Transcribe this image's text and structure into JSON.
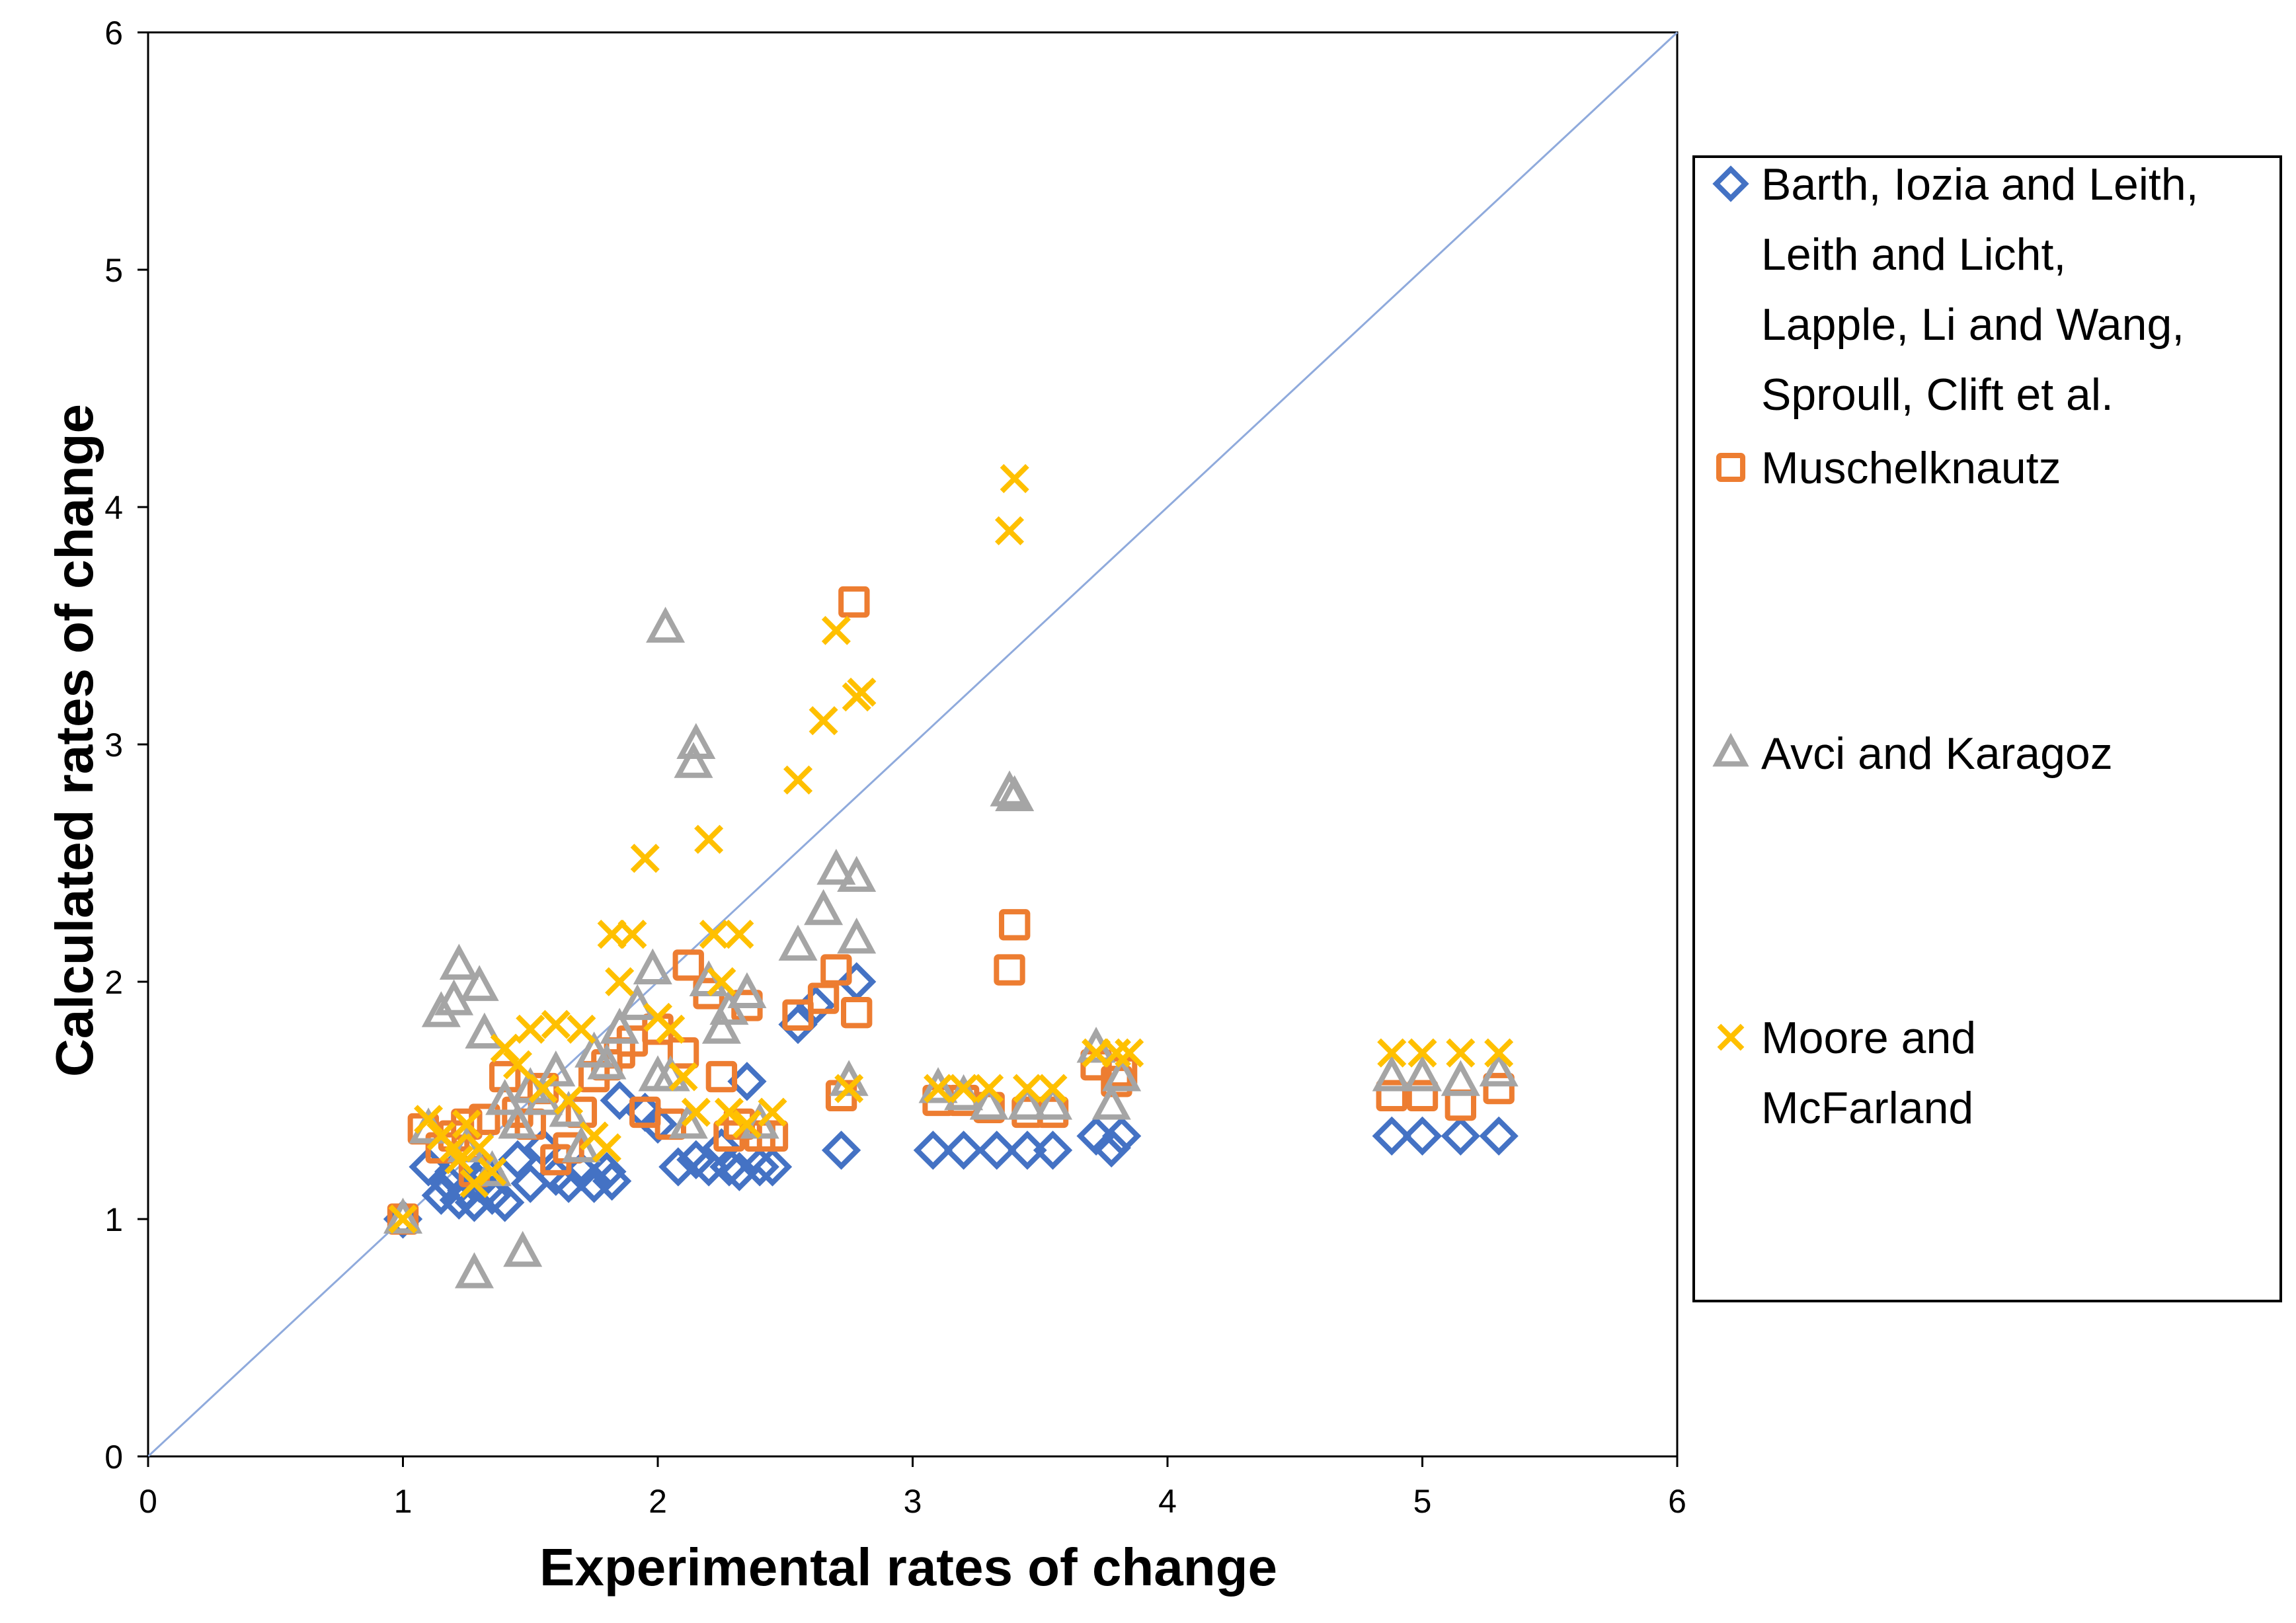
{
  "chart_data": {
    "type": "scatter",
    "title": "",
    "xlabel": "Experimental rates of change",
    "ylabel": "Calculated rates of change",
    "xlim": [
      0,
      6
    ],
    "ylim": [
      0,
      6
    ],
    "xticks": [
      "0",
      "1",
      "2",
      "3",
      "4",
      "5",
      "6"
    ],
    "yticks": [
      "0",
      "1",
      "2",
      "3",
      "4",
      "5",
      "6"
    ],
    "grid": false,
    "legend_position": "right",
    "reference_line": {
      "name": "y = x",
      "from": [
        0,
        0
      ],
      "to": [
        6,
        6
      ],
      "color": "#8faadc"
    },
    "series": [
      {
        "name": "Barth, Iozia and Leith, Leith and Licht, Lapple, Li and Wang, Sproull, Clift et al.",
        "legend_lines": [
          "Barth, Iozia and Leith,",
          "Leith and Licht,",
          "Lapple, Li and Wang,",
          "Sproull, Clift et al."
        ],
        "marker": "diamond",
        "color": "#4472c4",
        "points": [
          [
            1.0,
            1.0
          ],
          [
            1.1,
            1.22
          ],
          [
            1.15,
            1.1
          ],
          [
            1.18,
            1.15
          ],
          [
            1.2,
            1.2
          ],
          [
            1.22,
            1.08
          ],
          [
            1.25,
            1.12
          ],
          [
            1.28,
            1.07
          ],
          [
            1.3,
            1.15
          ],
          [
            1.32,
            1.2
          ],
          [
            1.35,
            1.1
          ],
          [
            1.4,
            1.07
          ],
          [
            1.45,
            1.25
          ],
          [
            1.5,
            1.15
          ],
          [
            1.55,
            1.3
          ],
          [
            1.6,
            1.18
          ],
          [
            1.65,
            1.15
          ],
          [
            1.7,
            1.2
          ],
          [
            1.75,
            1.15
          ],
          [
            1.8,
            1.2
          ],
          [
            1.82,
            1.16
          ],
          [
            1.85,
            1.5
          ],
          [
            1.95,
            1.45
          ],
          [
            2.0,
            1.4
          ],
          [
            2.08,
            1.22
          ],
          [
            2.15,
            1.25
          ],
          [
            2.2,
            1.22
          ],
          [
            2.25,
            1.3
          ],
          [
            2.28,
            1.22
          ],
          [
            2.32,
            1.2
          ],
          [
            2.35,
            1.58
          ],
          [
            2.4,
            1.22
          ],
          [
            2.45,
            1.22
          ],
          [
            2.55,
            1.82
          ],
          [
            2.62,
            1.9
          ],
          [
            2.72,
            1.29
          ],
          [
            2.78,
            2.0
          ],
          [
            3.08,
            1.29
          ],
          [
            3.2,
            1.29
          ],
          [
            3.33,
            1.29
          ],
          [
            3.45,
            1.29
          ],
          [
            3.55,
            1.29
          ],
          [
            3.72,
            1.35
          ],
          [
            3.78,
            1.3
          ],
          [
            3.82,
            1.35
          ],
          [
            4.88,
            1.35
          ],
          [
            5.0,
            1.35
          ],
          [
            5.15,
            1.35
          ],
          [
            5.3,
            1.35
          ]
        ]
      },
      {
        "name": "Muschelknautz",
        "legend_lines": [
          "Muschelknautz"
        ],
        "marker": "square",
        "color": "#ed7d31",
        "points": [
          [
            1.0,
            1.0
          ],
          [
            1.08,
            1.38
          ],
          [
            1.15,
            1.3
          ],
          [
            1.2,
            1.35
          ],
          [
            1.25,
            1.4
          ],
          [
            1.28,
            1.2
          ],
          [
            1.32,
            1.42
          ],
          [
            1.4,
            1.6
          ],
          [
            1.45,
            1.45
          ],
          [
            1.5,
            1.4
          ],
          [
            1.55,
            1.55
          ],
          [
            1.6,
            1.25
          ],
          [
            1.65,
            1.3
          ],
          [
            1.7,
            1.45
          ],
          [
            1.75,
            1.6
          ],
          [
            1.8,
            1.65
          ],
          [
            1.85,
            1.7
          ],
          [
            1.9,
            1.75
          ],
          [
            1.95,
            1.45
          ],
          [
            2.0,
            1.8
          ],
          [
            2.05,
            1.4
          ],
          [
            2.1,
            1.7
          ],
          [
            2.12,
            2.07
          ],
          [
            2.2,
            1.95
          ],
          [
            2.25,
            1.6
          ],
          [
            2.28,
            1.35
          ],
          [
            2.32,
            1.4
          ],
          [
            2.35,
            1.9
          ],
          [
            2.4,
            1.35
          ],
          [
            2.45,
            1.35
          ],
          [
            2.55,
            1.86
          ],
          [
            2.65,
            1.93
          ],
          [
            2.7,
            2.05
          ],
          [
            2.72,
            1.52
          ],
          [
            2.77,
            3.6
          ],
          [
            2.78,
            1.87
          ],
          [
            3.1,
            1.5
          ],
          [
            3.2,
            1.5
          ],
          [
            3.3,
            1.47
          ],
          [
            3.38,
            2.05
          ],
          [
            3.4,
            2.24
          ],
          [
            3.45,
            1.45
          ],
          [
            3.55,
            1.45
          ],
          [
            3.72,
            1.65
          ],
          [
            3.8,
            1.58
          ],
          [
            3.82,
            1.62
          ],
          [
            4.88,
            1.52
          ],
          [
            5.0,
            1.52
          ],
          [
            5.15,
            1.48
          ],
          [
            5.3,
            1.55
          ]
        ]
      },
      {
        "name": "Avci and Karagoz",
        "legend_lines": [
          "Avci and Karagoz"
        ],
        "marker": "triangle",
        "color": "#a5a5a5",
        "points": [
          [
            1.0,
            1.0
          ],
          [
            1.1,
            1.38
          ],
          [
            1.15,
            1.87
          ],
          [
            1.2,
            1.92
          ],
          [
            1.22,
            2.07
          ],
          [
            1.25,
            1.3
          ],
          [
            1.28,
            0.77
          ],
          [
            1.3,
            1.98
          ],
          [
            1.32,
            1.78
          ],
          [
            1.35,
            1.2
          ],
          [
            1.4,
            1.5
          ],
          [
            1.45,
            1.4
          ],
          [
            1.47,
            0.86
          ],
          [
            1.5,
            1.55
          ],
          [
            1.55,
            1.5
          ],
          [
            1.6,
            1.62
          ],
          [
            1.65,
            1.45
          ],
          [
            1.7,
            1.3
          ],
          [
            1.75,
            1.7
          ],
          [
            1.8,
            1.65
          ],
          [
            1.85,
            1.8
          ],
          [
            1.92,
            1.9
          ],
          [
            1.98,
            2.05
          ],
          [
            2.0,
            1.6
          ],
          [
            2.03,
            3.49
          ],
          [
            2.05,
            1.6
          ],
          [
            2.12,
            1.4
          ],
          [
            2.14,
            2.92
          ],
          [
            2.15,
            3.0
          ],
          [
            2.2,
            2.0
          ],
          [
            2.25,
            1.8
          ],
          [
            2.28,
            1.88
          ],
          [
            2.35,
            1.95
          ],
          [
            2.4,
            1.4
          ],
          [
            2.55,
            2.15
          ],
          [
            2.65,
            2.3
          ],
          [
            2.7,
            2.47
          ],
          [
            2.75,
            1.58
          ],
          [
            2.78,
            2.44
          ],
          [
            2.78,
            2.18
          ],
          [
            3.1,
            1.55
          ],
          [
            3.2,
            1.52
          ],
          [
            3.3,
            1.48
          ],
          [
            3.38,
            2.8
          ],
          [
            3.4,
            2.78
          ],
          [
            3.45,
            1.48
          ],
          [
            3.55,
            1.48
          ],
          [
            3.72,
            1.72
          ],
          [
            3.78,
            1.48
          ],
          [
            3.82,
            1.6
          ],
          [
            4.88,
            1.6
          ],
          [
            5.0,
            1.6
          ],
          [
            5.15,
            1.58
          ],
          [
            5.3,
            1.62
          ]
        ]
      },
      {
        "name": "Moore and McFarland",
        "legend_lines": [
          "Moore and",
          "McFarland"
        ],
        "marker": "x",
        "color": "#ffc000",
        "points": [
          [
            1.0,
            1.0
          ],
          [
            1.1,
            1.42
          ],
          [
            1.15,
            1.35
          ],
          [
            1.2,
            1.3
          ],
          [
            1.22,
            1.25
          ],
          [
            1.25,
            1.4
          ],
          [
            1.28,
            1.15
          ],
          [
            1.3,
            1.3
          ],
          [
            1.35,
            1.2
          ],
          [
            1.4,
            1.72
          ],
          [
            1.45,
            1.65
          ],
          [
            1.5,
            1.8
          ],
          [
            1.55,
            1.55
          ],
          [
            1.6,
            1.82
          ],
          [
            1.65,
            1.5
          ],
          [
            1.7,
            1.8
          ],
          [
            1.75,
            1.35
          ],
          [
            1.8,
            1.3
          ],
          [
            1.82,
            2.2
          ],
          [
            1.85,
            2.0
          ],
          [
            1.9,
            2.2
          ],
          [
            1.95,
            2.52
          ],
          [
            2.0,
            1.85
          ],
          [
            2.05,
            1.8
          ],
          [
            2.1,
            1.6
          ],
          [
            2.15,
            1.45
          ],
          [
            2.2,
            2.6
          ],
          [
            2.22,
            2.2
          ],
          [
            2.25,
            2.0
          ],
          [
            2.28,
            1.45
          ],
          [
            2.32,
            2.2
          ],
          [
            2.35,
            1.4
          ],
          [
            2.45,
            1.45
          ],
          [
            2.55,
            2.85
          ],
          [
            2.65,
            3.1
          ],
          [
            2.7,
            3.48
          ],
          [
            2.75,
            1.55
          ],
          [
            2.78,
            3.2
          ],
          [
            2.8,
            3.22
          ],
          [
            3.1,
            1.55
          ],
          [
            3.2,
            1.55
          ],
          [
            3.3,
            1.55
          ],
          [
            3.38,
            3.9
          ],
          [
            3.4,
            4.12
          ],
          [
            3.45,
            1.55
          ],
          [
            3.55,
            1.55
          ],
          [
            3.72,
            1.7
          ],
          [
            3.8,
            1.7
          ],
          [
            3.85,
            1.7
          ],
          [
            4.88,
            1.7
          ],
          [
            5.0,
            1.7
          ],
          [
            5.15,
            1.7
          ],
          [
            5.3,
            1.7
          ]
        ]
      }
    ]
  }
}
